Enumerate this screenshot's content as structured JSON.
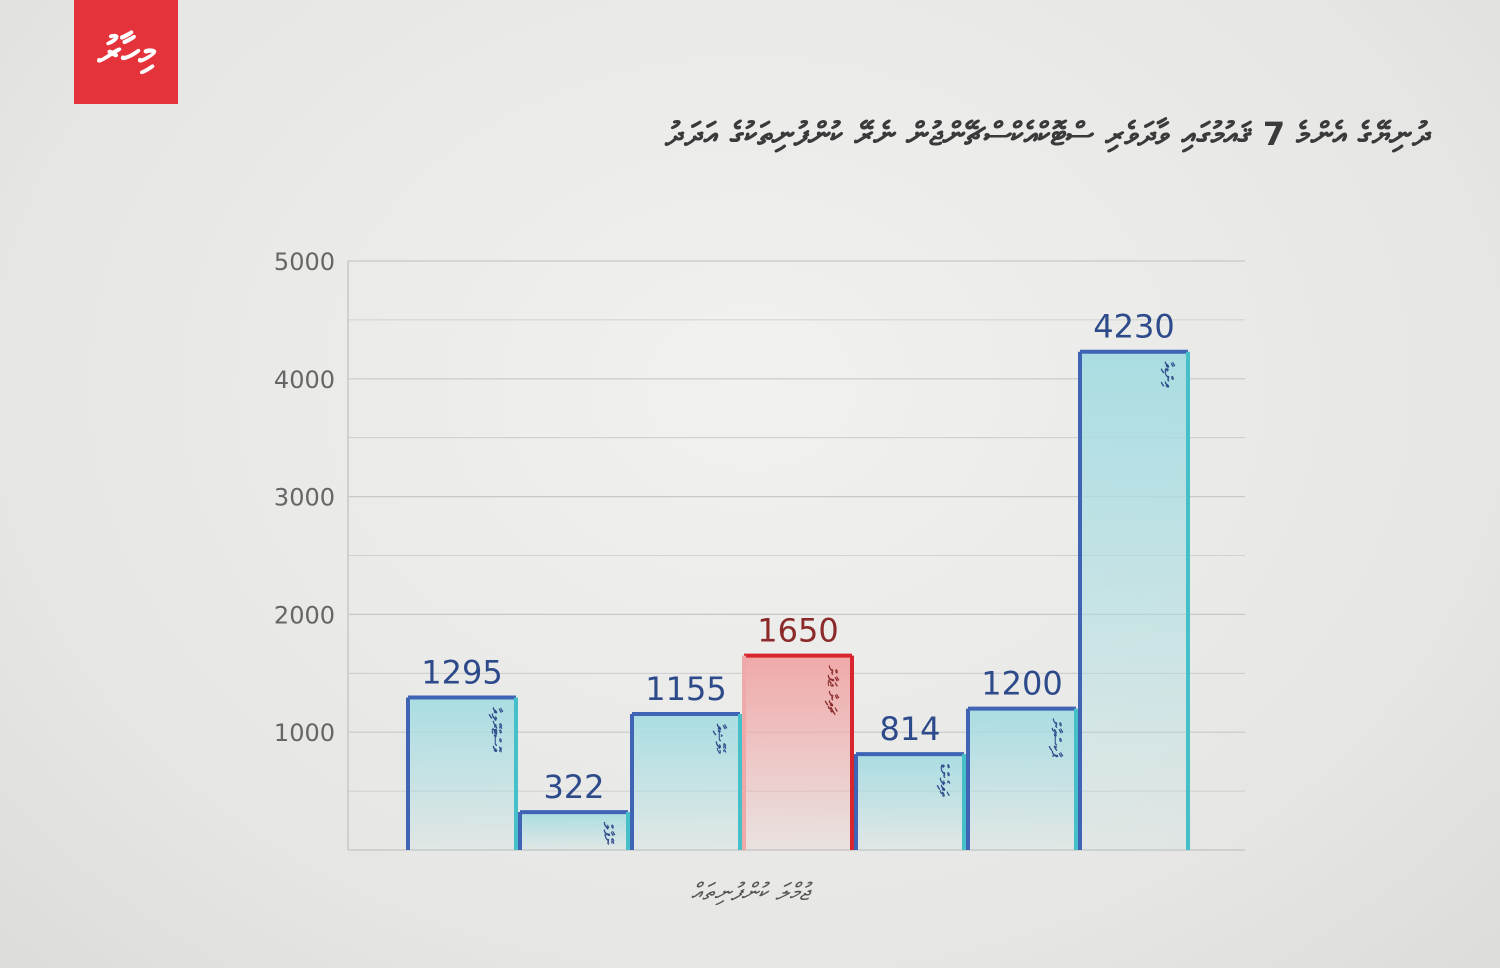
{
  "logo_text": "މިހާރު",
  "title": "ދުނިޔޭގެ އެންމެ 7 ޤައުމުގައި ވާދަވެރި ސްޓޮކްއެކްސްޗޭންޖުން ނެރޭ ކުންފުނިތަކުގެ އަދަދު",
  "colors": {
    "bar_fill_top": "#a9dde2",
    "bar_border_left": "#3f63b5",
    "bar_border_right": "#45c0c8",
    "highlight_fill": "#f0a9a9",
    "highlight_border": "#d9252e",
    "value_text": "#2d4a8a",
    "highlight_text": "#8b2a2a",
    "grid": "#c8c8c8",
    "axis_text": "#666666"
  },
  "chart_data": {
    "type": "bar",
    "title": "ދުނިޔޭގެ އެންމެ 7 ޤައުމުގައި ވާދަވެރި ސްޓޮކްއެކްސްޗޭންޖުން ނެރޭ ކުންފުނިތަކުގެ އަދަދު",
    "xlabel": "ޖުމްލަ ކުންފުނިތައް",
    "ylabel": "",
    "ylim": [
      0,
      5000
    ],
    "yticks": [
      1000,
      2000,
      3000,
      4000,
      5000
    ],
    "grid": true,
    "categories": [
      "އޮސްޓްރޭލިއާ",
      "ނޭޕާލް",
      "މެލޭޝިއާ",
      "ޗައިނާ ޖަޕާން",
      "ތައިލެންޑް",
      "ޕާކިސްތާން",
      "އިންޑިއާ"
    ],
    "values": [
      1295,
      322,
      1155,
      1650,
      814,
      1200,
      4230
    ],
    "highlight_index": 3
  }
}
